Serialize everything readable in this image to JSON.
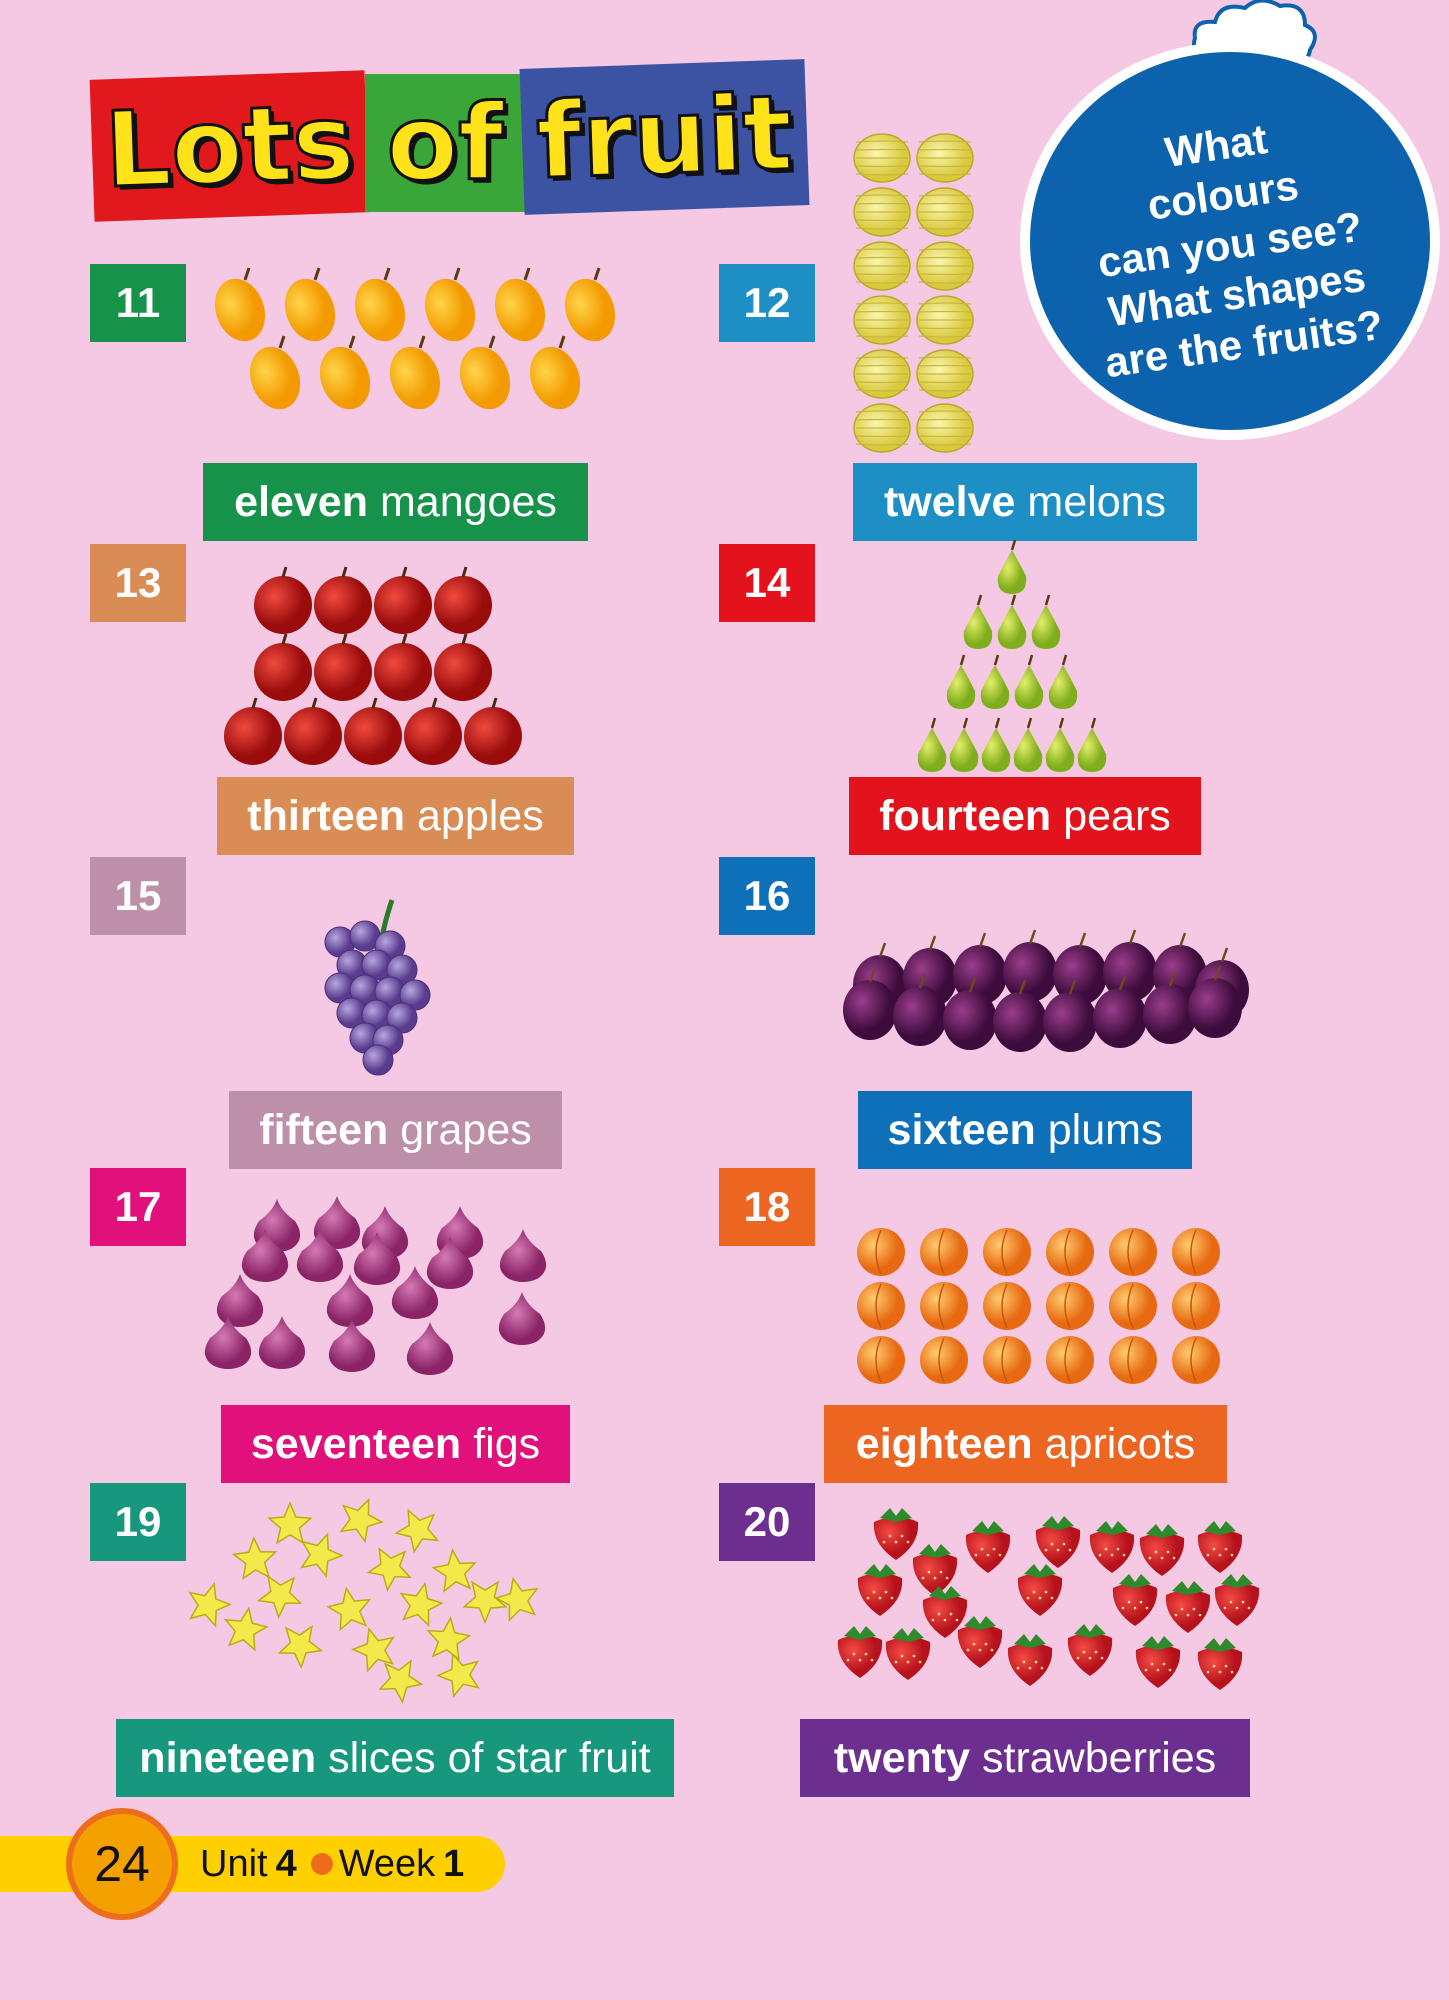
{
  "title": {
    "words": [
      "Lots",
      "of",
      "fruit"
    ],
    "colors": [
      "#e2191c",
      "#3aa63a",
      "#3c53a3"
    ]
  },
  "bubble": {
    "lines": [
      "What",
      "colours",
      "can you see?",
      "What shapes",
      "are the fruits?"
    ]
  },
  "items": [
    {
      "number": "11",
      "word": "eleven",
      "fruit": "mangoes",
      "color": "#16924b",
      "icon": "mango-icon"
    },
    {
      "number": "12",
      "word": "twelve",
      "fruit": "melons",
      "color": "#1d8fc4",
      "icon": "melon-icon"
    },
    {
      "number": "13",
      "word": "thirteen",
      "fruit": "apples",
      "color": "#d98c53",
      "icon": "apple-icon"
    },
    {
      "number": "14",
      "word": "fourteen",
      "fruit": "pears",
      "color": "#e3131d",
      "icon": "pear-icon"
    },
    {
      "number": "15",
      "word": "fifteen",
      "fruit": "grapes",
      "color": "#bd8fa8",
      "icon": "grape-icon"
    },
    {
      "number": "16",
      "word": "sixteen",
      "fruit": "plums",
      "color": "#0e70b8",
      "icon": "plum-icon"
    },
    {
      "number": "17",
      "word": "seventeen",
      "fruit": "figs",
      "color": "#e2107a",
      "icon": "fig-icon"
    },
    {
      "number": "18",
      "word": "eighteen",
      "fruit": "apricots",
      "color": "#ec6521",
      "icon": "apricot-icon"
    },
    {
      "number": "19",
      "word": "nineteen",
      "fruit": "slices of star fruit",
      "color": "#16977e",
      "icon": "star-fruit-icon"
    },
    {
      "number": "20",
      "word": "twenty",
      "fruit": "strawberries",
      "color": "#6c2f8f",
      "icon": "strawberry-icon"
    }
  ],
  "footer": {
    "page_number": "24",
    "unit_label": "Unit",
    "unit_number": "4",
    "week_label": "Week",
    "week_number": "1"
  }
}
